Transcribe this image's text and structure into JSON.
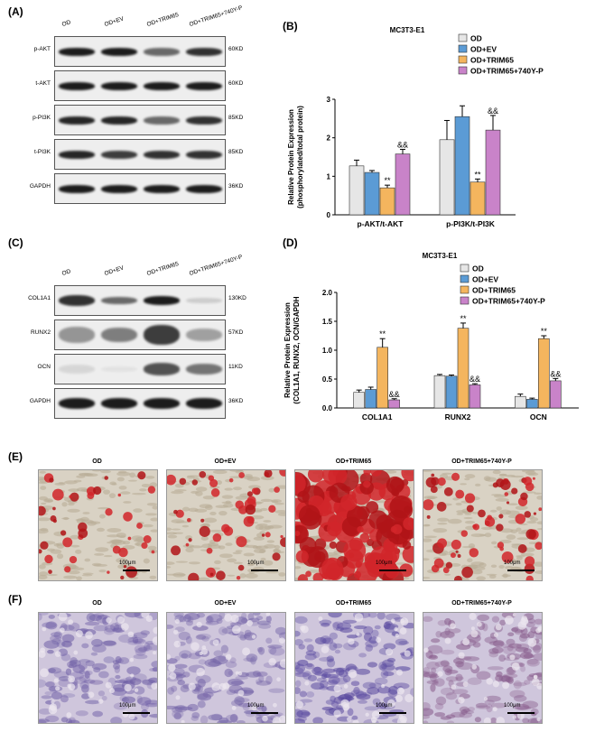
{
  "panels": {
    "A": "(A)",
    "B": "(B)",
    "C": "(C)",
    "D": "(D)",
    "E": "(E)",
    "F": "(F)"
  },
  "wb_A": {
    "lanes": [
      "OD",
      "OD+EV",
      "OD+TRIM65",
      "OD+TRIM65+740Y-P"
    ],
    "rows": [
      {
        "name": "p-AKT",
        "kd": "60KD"
      },
      {
        "name": "t-AKT",
        "kd": "60KD"
      },
      {
        "name": "p-PI3K",
        "kd": "85KD"
      },
      {
        "name": "t-PI3K",
        "kd": "85KD"
      },
      {
        "name": "GAPDH",
        "kd": "36KD"
      }
    ]
  },
  "wb_C": {
    "lanes": [
      "OD",
      "OD+EV",
      "OD+TRIM65",
      "OD+TRIM65+740Y-P"
    ],
    "rows": [
      {
        "name": "COL1A1",
        "kd": "130KD"
      },
      {
        "name": "RUNX2",
        "kd": "57KD"
      },
      {
        "name": "OCN",
        "kd": "11KD"
      },
      {
        "name": "GAPDH",
        "kd": "36KD"
      }
    ]
  },
  "colors": {
    "OD": "#e6e6e6",
    "OD+EV": "#5b9bd5",
    "OD+TRIM65": "#f4b55e",
    "OD+TRIM65+740Y-P": "#c983c9"
  },
  "chart_data": [
    {
      "type": "bar",
      "title": "MC3T3-E1",
      "ylabel": "Relative Protein Expression (phosphorylated/total protein)",
      "categories": [
        "p-AKT/t-AKT",
        "p-PI3K/t-PI3K"
      ],
      "ylim": [
        0,
        3
      ],
      "yticks": [
        "0",
        "1",
        "2",
        "3"
      ],
      "legend_position": "top-right",
      "series": [
        {
          "name": "OD",
          "values": [
            1.27,
            1.95
          ],
          "errors": [
            0.15,
            0.5
          ]
        },
        {
          "name": "OD+EV",
          "values": [
            1.1,
            2.55
          ],
          "errors": [
            0.05,
            0.28
          ]
        },
        {
          "name": "OD+TRIM65",
          "values": [
            0.7,
            0.85
          ],
          "errors": [
            0.07,
            0.08
          ]
        },
        {
          "name": "OD+TRIM65+740Y-P",
          "values": [
            1.58,
            2.2
          ],
          "errors": [
            0.12,
            0.38
          ]
        }
      ],
      "annotations": [
        {
          "category": 0,
          "series": 2,
          "text": "**"
        },
        {
          "category": 0,
          "series": 3,
          "text": "&&"
        },
        {
          "category": 1,
          "series": 2,
          "text": "**"
        },
        {
          "category": 1,
          "series": 3,
          "text": "&&"
        }
      ]
    },
    {
      "type": "bar",
      "title": "MC3T3-E1",
      "ylabel": "Relative Protein Expression (COL1A1, RUNX2, OCN/GAPDH",
      "categories": [
        "COL1A1",
        "RUNX2",
        "OCN"
      ],
      "ylim": [
        0,
        2
      ],
      "yticks": [
        "0.0",
        "0.5",
        "1.0",
        "1.5",
        "2.0"
      ],
      "legend_position": "top-right",
      "series": [
        {
          "name": "OD",
          "values": [
            0.27,
            0.56,
            0.2
          ],
          "errors": [
            0.04,
            0.02,
            0.04
          ]
        },
        {
          "name": "OD+EV",
          "values": [
            0.32,
            0.55,
            0.15
          ],
          "errors": [
            0.04,
            0.02,
            0.02
          ]
        },
        {
          "name": "OD+TRIM65",
          "values": [
            1.05,
            1.38,
            1.2
          ],
          "errors": [
            0.15,
            0.09,
            0.05
          ]
        },
        {
          "name": "OD+TRIM65+740Y-P",
          "values": [
            0.14,
            0.4,
            0.47
          ],
          "errors": [
            0.02,
            0.02,
            0.04
          ]
        }
      ],
      "annotations": [
        {
          "category": 0,
          "series": 2,
          "text": "**"
        },
        {
          "category": 0,
          "series": 3,
          "text": "&&"
        },
        {
          "category": 1,
          "series": 2,
          "text": "**"
        },
        {
          "category": 1,
          "series": 3,
          "text": "&&"
        },
        {
          "category": 2,
          "series": 2,
          "text": "**"
        },
        {
          "category": 2,
          "series": 3,
          "text": "&&"
        }
      ]
    }
  ],
  "stain_E": {
    "titles": [
      "OD",
      "OD+EV",
      "OD+TRIM65",
      "OD+TRIM65+740Y-P"
    ],
    "scale": "100μm",
    "coverage": [
      0.18,
      0.22,
      0.65,
      0.28
    ]
  },
  "stain_F": {
    "titles": [
      "OD",
      "OD+EV",
      "OD+TRIM65",
      "OD+TRIM65+740Y-P"
    ],
    "scale": "100μm"
  }
}
